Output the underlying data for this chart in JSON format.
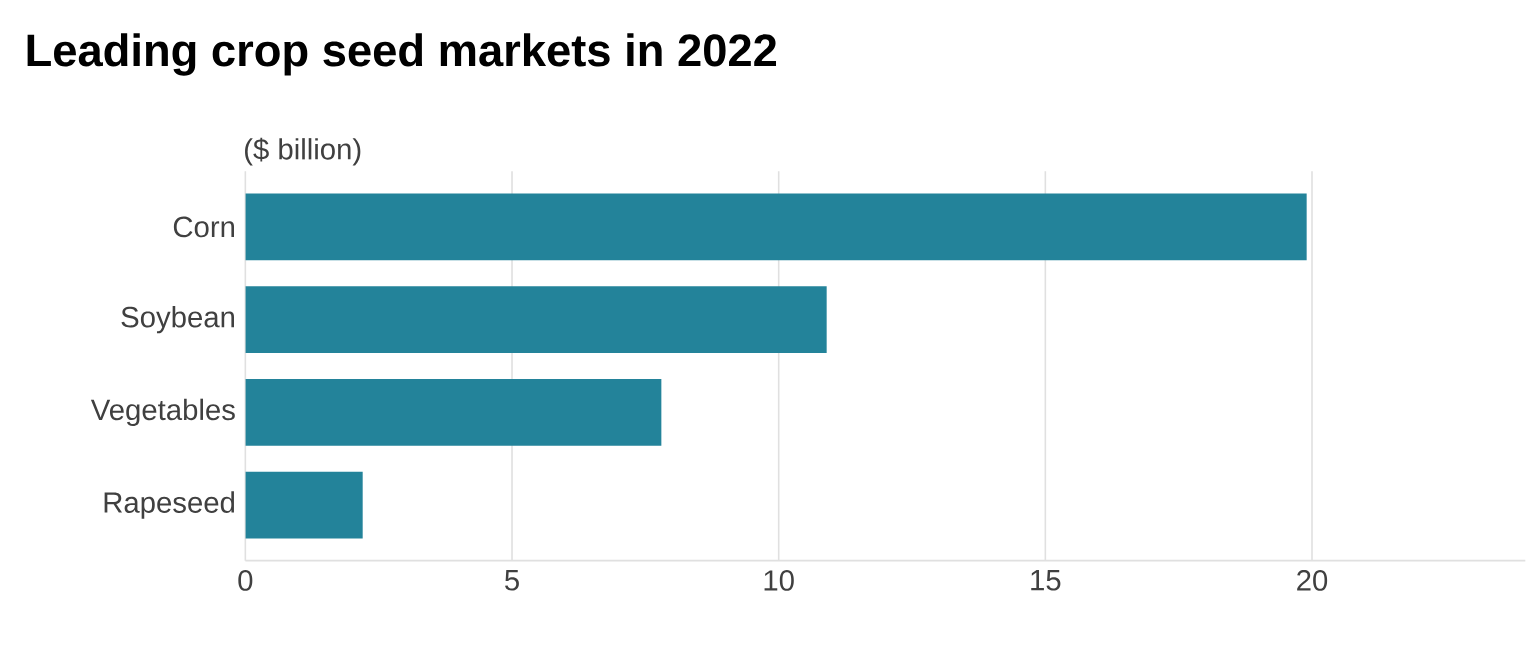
{
  "chart_data": {
    "type": "bar",
    "orientation": "horizontal",
    "title": "Leading crop seed markets in 2022",
    "subtitle": "($ billion)",
    "categories": [
      "Corn",
      "Soybean",
      "Vegetables",
      "Rapeseed"
    ],
    "values": [
      19.9,
      10.9,
      7.8,
      2.2
    ],
    "color": "#23839a",
    "xlim": [
      0,
      24
    ],
    "xticks": [
      0,
      5,
      10,
      15,
      20
    ],
    "grid": "x"
  }
}
